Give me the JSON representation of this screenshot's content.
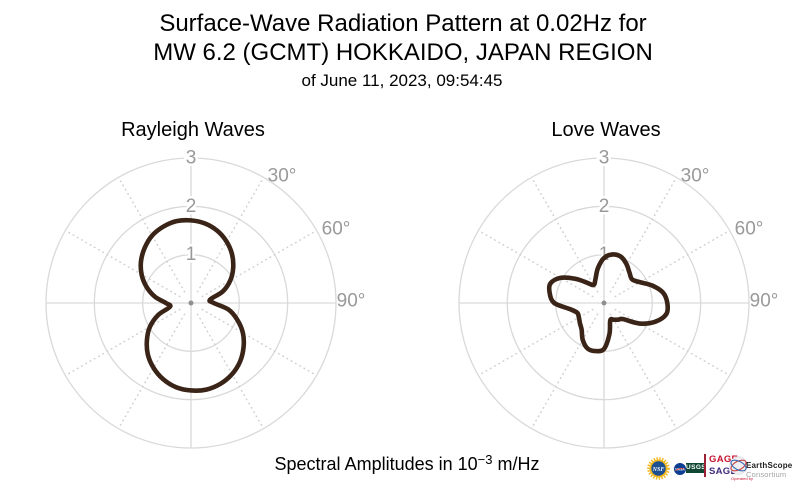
{
  "header": {
    "title_line1": "Surface-Wave Radiation Pattern at 0.02Hz for",
    "title_line2": "MW 6.2 (GCMT) HOKKAIDO, JAPAN REGION",
    "subtitle": "of June 11, 2023, 09:54:45"
  },
  "caption": {
    "prefix": "Spectral Amplitudes in 10",
    "exponent": "−3",
    "suffix": " m/Hz"
  },
  "colors": {
    "pattern_line": "#3a2418",
    "grid": "#d9d9d9",
    "dotted_ray": "#cfcfcf",
    "tick_label": "#999999",
    "center_dot": "#909090",
    "title_text": "#000000"
  },
  "chart_data": [
    {
      "type": "polar",
      "title": "Rayleigh Waves",
      "radial_ticks": [
        1,
        2,
        3
      ],
      "radial_max": 3,
      "angle_tick_labels": [
        "30°",
        "60°",
        "90°"
      ],
      "angle_tick_degrees": [
        30,
        60,
        90
      ],
      "grid_rays_deg": [
        30,
        60,
        120,
        150,
        210,
        240,
        300,
        330
      ],
      "azimuth_convention": "degrees clockwise from top",
      "azimuth_step_deg": 10,
      "r_by_azimuth_deg": [
        1.71,
        1.67,
        1.59,
        1.47,
        1.32,
        1.14,
        0.94,
        0.7,
        0.4,
        0.47,
        0.79,
        1.02,
        1.24,
        1.42,
        1.58,
        1.7,
        1.78,
        1.82,
        1.81,
        1.77,
        1.68,
        1.55,
        1.39,
        1.19,
        0.98,
        0.72,
        0.44,
        0.52,
        0.76,
        0.98,
        1.18,
        1.35,
        1.49,
        1.61,
        1.68,
        1.72
      ],
      "lobe_peaks": [
        {
          "azimuth_deg": 354,
          "amplitude": 1.72
        },
        {
          "azimuth_deg": 174,
          "amplitude": 1.82
        }
      ],
      "units": "10⁻³ m/Hz"
    },
    {
      "type": "polar",
      "title": "Love Waves",
      "radial_ticks": [
        1,
        2,
        3
      ],
      "radial_max": 3,
      "angle_tick_labels": [
        "30°",
        "60°",
        "90°"
      ],
      "angle_tick_degrees": [
        30,
        60,
        90
      ],
      "grid_rays_deg": [
        30,
        60,
        120,
        150,
        210,
        240,
        300,
        330
      ],
      "azimuth_convention": "degrees clockwise from top",
      "azimuth_step_deg": 10,
      "r_by_azimuth_deg": [
        0.93,
        1.02,
        1.02,
        0.93,
        0.82,
        0.76,
        0.86,
        1.06,
        1.24,
        1.31,
        1.31,
        1.13,
        0.85,
        0.52,
        0.45,
        0.4,
        0.38,
        0.65,
        0.95,
        1.01,
        1.0,
        0.88,
        0.72,
        0.65,
        0.6,
        0.59,
        0.72,
        1.03,
        1.14,
        1.18,
        1.04,
        0.78,
        0.55,
        0.43,
        0.52,
        0.73
      ],
      "lobe_peaks": [
        {
          "azimuth_deg": 15,
          "amplitude": 1.03
        },
        {
          "azimuth_deg": 98,
          "amplitude": 1.33
        },
        {
          "azimuth_deg": 194,
          "amplitude": 1.02
        },
        {
          "azimuth_deg": 290,
          "amplitude": 1.18
        }
      ],
      "units": "10⁻³ m/Hz"
    }
  ],
  "logos": {
    "nsf": "NSF",
    "nasa": "NASA",
    "usgs": "USGS",
    "gage": "GAGE",
    "sage": "SAGE",
    "sphere_label": "earthscope-globe",
    "operated_by": "Operated by",
    "earthscope": "EarthScope",
    "consortium": "Consortium"
  }
}
